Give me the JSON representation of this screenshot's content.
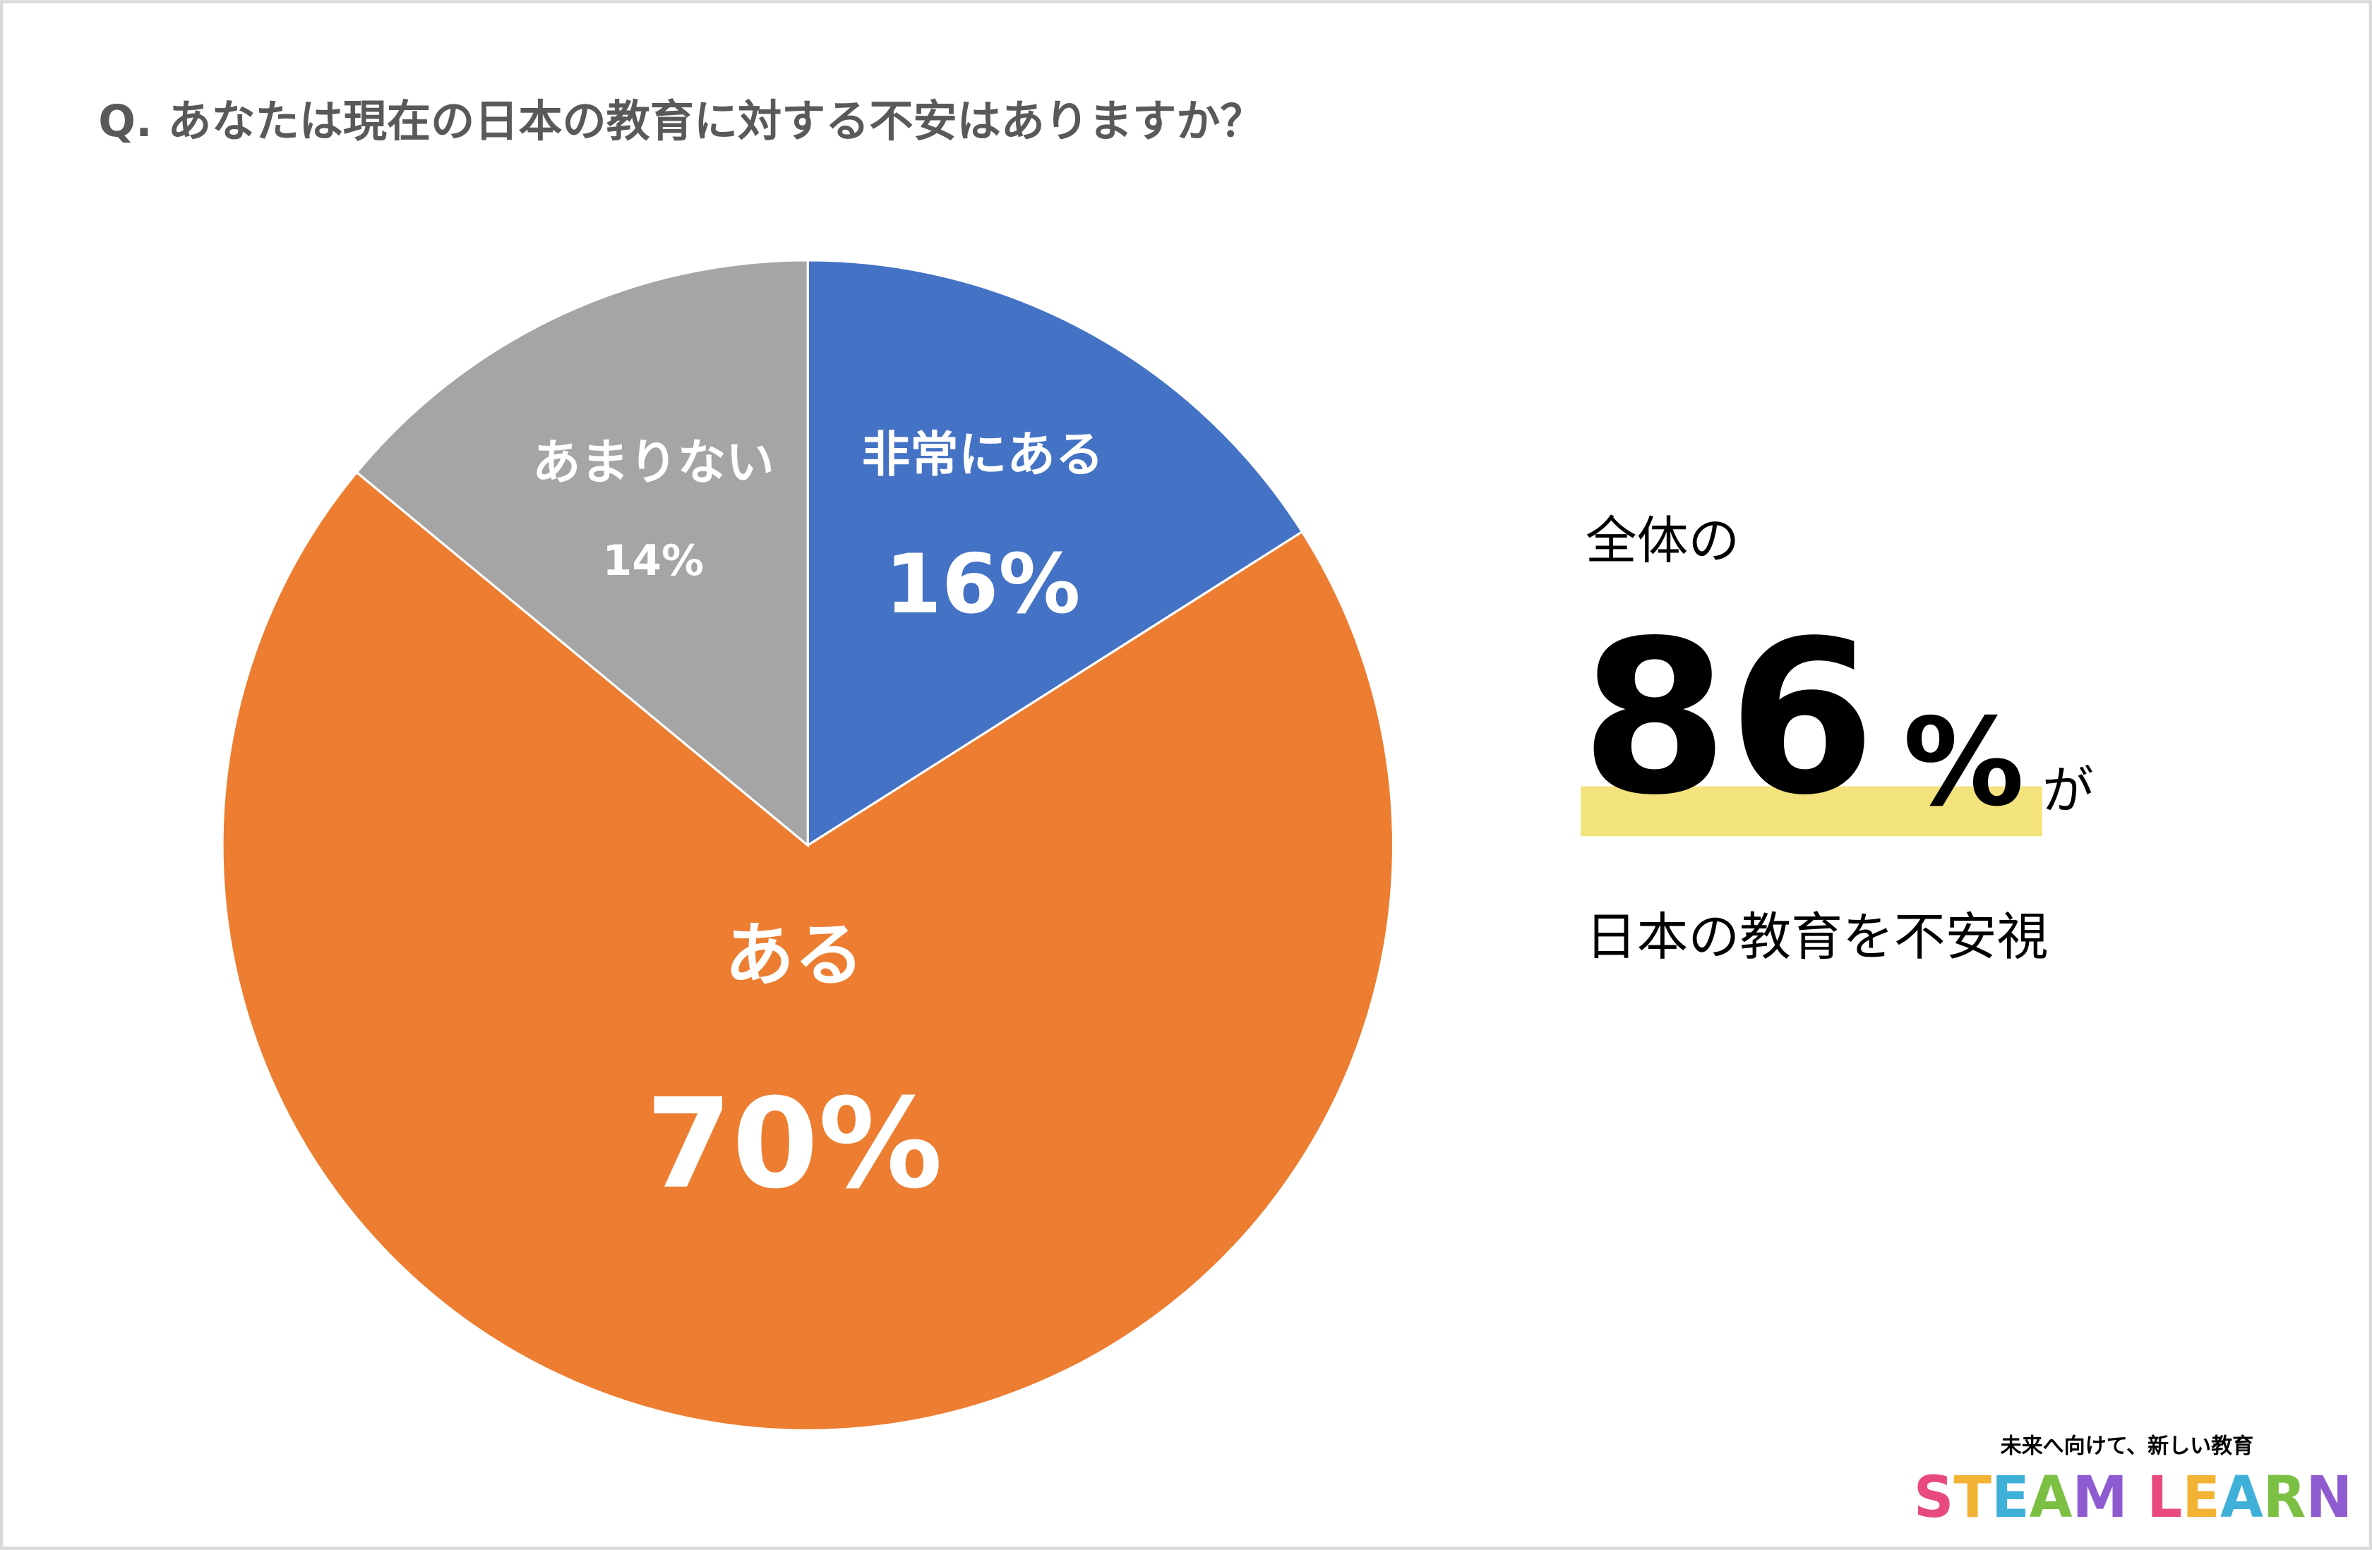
{
  "chart_data": {
    "type": "pie",
    "title": "Q. あなたは現在の日本の教育に対する不安はありますか？",
    "categories": [
      "非常にある",
      "ある",
      "あまりない"
    ],
    "values": [
      16,
      70,
      14
    ],
    "value_labels": [
      "16%",
      "70%",
      "14%"
    ],
    "colors": [
      "#4472c4",
      "#ed7d31",
      "#a5a5a5"
    ],
    "annotation": {
      "line1": "全体の",
      "number": "86",
      "unit": "%",
      "suffix": "が",
      "line3": "日本の教育を不安視"
    },
    "logo": {
      "tagline": "未来へ向けて、新しい教育",
      "name": "STEAM LEARN"
    }
  }
}
